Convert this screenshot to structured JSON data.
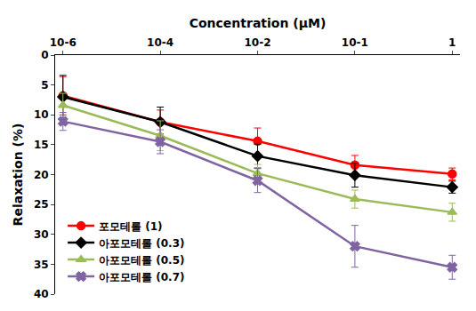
{
  "chart_data": {
    "type": "line",
    "x_label": "Concentration (μM)",
    "y_label": "Relaxation (%)",
    "categories": [
      "10-6",
      "10-4",
      "10-2",
      "10-1",
      "1"
    ],
    "series": [
      {
        "name": "포모테롤 (1)",
        "color": "#ff0000",
        "marker": "circle",
        "values": [
          6.8,
          11.2,
          14.4,
          18.4,
          19.9
        ],
        "error": [
          3.2,
          2.0,
          2.2,
          1.6,
          1.0
        ]
      },
      {
        "name": "아포모테롤 (0.3)",
        "color": "#000000",
        "marker": "diamond",
        "values": [
          7.0,
          11.2,
          16.9,
          20.1,
          22.1
        ],
        "error": [
          3.6,
          2.5,
          2.0,
          2.0,
          1.0
        ]
      },
      {
        "name": "아포모테롤 (0.5)",
        "color": "#9bbb59",
        "marker": "triangle-up",
        "values": [
          8.4,
          13.5,
          19.8,
          24.1,
          26.3
        ],
        "error": [
          2.0,
          2.5,
          1.5,
          1.5,
          1.5
        ]
      },
      {
        "name": "아포모테롤 (0.7)",
        "color": "#8064a2",
        "marker": "x",
        "values": [
          11.1,
          14.5,
          21.0,
          32.0,
          35.5
        ],
        "error": [
          1.5,
          2.0,
          2.0,
          3.5,
          2.0
        ]
      }
    ],
    "ylim": [
      40,
      0
    ],
    "yticks": [
      0,
      5,
      10,
      15,
      20,
      25,
      30,
      35,
      40
    ],
    "grid": false,
    "legend": "lower left"
  }
}
